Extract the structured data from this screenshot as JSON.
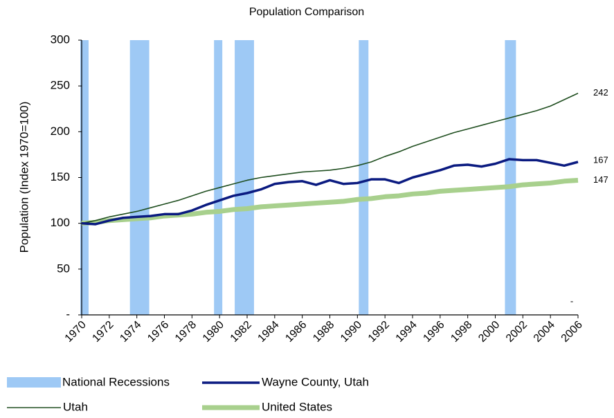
{
  "chart_data": {
    "type": "line",
    "title": "Population Comparison",
    "y_label": "Population (Index 1970=100)",
    "annotation": "-",
    "x": [
      1970,
      1971,
      1972,
      1973,
      1974,
      1975,
      1976,
      1977,
      1978,
      1979,
      1980,
      1981,
      1982,
      1983,
      1984,
      1985,
      1986,
      1987,
      1988,
      1989,
      1990,
      1991,
      1992,
      1993,
      1994,
      1995,
      1996,
      1997,
      1998,
      1999,
      2000,
      2001,
      2002,
      2003,
      2004,
      2005,
      2006
    ],
    "xlim": [
      1970,
      2006
    ],
    "xticks": [
      1970,
      1972,
      1974,
      1976,
      1978,
      1980,
      1982,
      1984,
      1986,
      1988,
      1990,
      1992,
      1994,
      1996,
      1998,
      2000,
      2002,
      2004,
      2006
    ],
    "ylim": [
      0,
      300
    ],
    "yticks": [
      {
        "value": 0,
        "label": "-"
      },
      50,
      100,
      150,
      200,
      250,
      300
    ],
    "grid": false,
    "recessions": {
      "name": "National Recessions",
      "color": "#9ec9f5",
      "periods": [
        [
          1969.9,
          1970.5
        ],
        [
          1973.5,
          1974.9
        ],
        [
          1979.6,
          1980.2
        ],
        [
          1981.1,
          1982.5
        ],
        [
          1990.1,
          1990.8
        ],
        [
          2000.7,
          2001.5
        ]
      ]
    },
    "series": [
      {
        "name": "Wayne County, Utah",
        "color": "#0a1a80",
        "width": 3.5,
        "values": [
          100,
          99,
          103,
          106,
          107,
          108,
          110,
          110,
          114,
          120,
          125,
          130,
          133,
          137,
          143,
          145,
          146,
          142,
          147,
          143,
          144,
          148,
          148,
          144,
          150,
          154,
          158,
          163,
          164,
          162,
          165,
          170,
          169,
          169,
          166,
          163,
          167
        ]
      },
      {
        "name": "Utah",
        "color": "#1e4d1e",
        "width": 1.6,
        "values": [
          100,
          103,
          107,
          110,
          113,
          117,
          121,
          125,
          130,
          135,
          139,
          143,
          147,
          150,
          152,
          154,
          156,
          157,
          158,
          160,
          163,
          167,
          173,
          178,
          184,
          189,
          194,
          199,
          203,
          207,
          211,
          215,
          219,
          223,
          228,
          235,
          242
        ]
      },
      {
        "name": "United States",
        "color": "#a8d08d",
        "width": 7,
        "values": [
          100,
          101,
          103,
          104,
          105,
          106,
          108,
          109,
          110,
          112,
          113,
          115,
          116,
          118,
          119,
          120,
          121,
          122,
          123,
          124,
          126,
          127,
          129,
          130,
          132,
          133,
          135,
          136,
          137,
          138,
          139,
          140,
          142,
          143,
          144,
          146,
          147
        ]
      }
    ]
  }
}
